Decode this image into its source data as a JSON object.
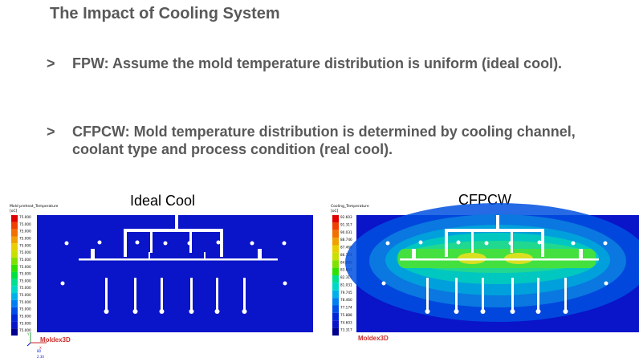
{
  "slide": {
    "title": "The Impact of Cooling System",
    "bullets": [
      {
        "marker": ">",
        "text": "FPW: Assume the mold temperature distribution is uniform (ideal cool)."
      },
      {
        "marker": ">",
        "text": "CFPCW: Mold temperature distribution is determined by cooling channel, coolant type and process condition (real cool)."
      }
    ]
  },
  "panels": {
    "left": {
      "caption": "Ideal Cool",
      "legend_title": "Mold preheat_Temperature",
      "legend_unit": "[oC]",
      "legend_values": [
        "75.000",
        "75.000",
        "75.000",
        "75.000",
        "75.000",
        "75.000",
        "75.000",
        "75.000",
        "75.000",
        "75.000",
        "75.000",
        "75.000",
        "75.000",
        "75.000",
        "75.000",
        "75.000",
        "75.000"
      ],
      "logo": "Moldex3D",
      "axis_labels": [
        "Y",
        "X",
        "80",
        "2.30"
      ]
    },
    "right": {
      "caption": "CFPCW",
      "legend_title": "Cooling_Temperature",
      "legend_unit": "[oC]",
      "legend_values": [
        "92.603",
        "91.317",
        "90.031",
        "88.746",
        "87.460",
        "86.174",
        "84.888",
        "83.603",
        "82.317",
        "81.031",
        "79.745",
        "78.460",
        "77.174",
        "75.888",
        "74.603",
        "73.317"
      ],
      "logo": "Moldex3D"
    }
  },
  "colors": {
    "title": "#595959",
    "mold_blue": "#0a14c8",
    "logo_red": "#cc2a2a"
  }
}
